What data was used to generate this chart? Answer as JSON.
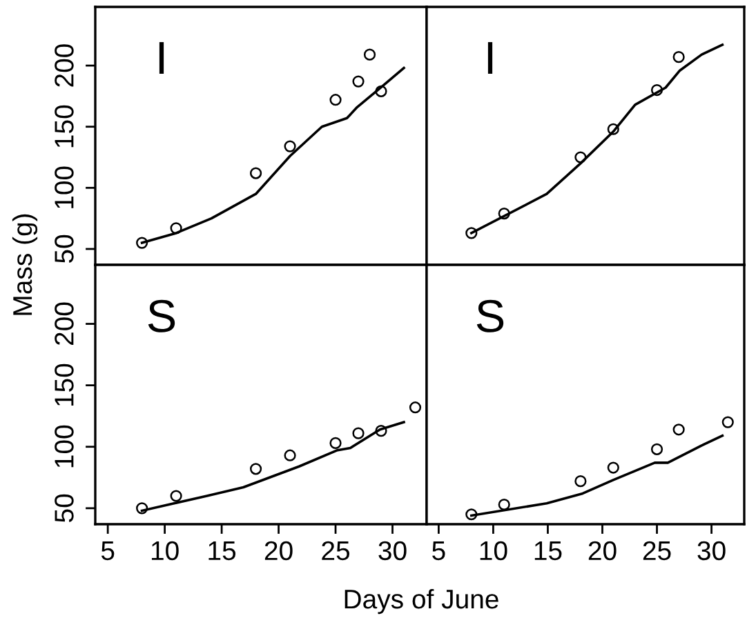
{
  "chart_data": [
    {
      "type": "scatter",
      "ylabel": "Mass (g)",
      "annotations": [
        "I"
      ],
      "xlim": [
        3.9,
        33
      ],
      "ylim": [
        37,
        248
      ],
      "yticks": [
        50,
        100,
        150,
        200
      ],
      "tick_labels": "y",
      "grid": false,
      "legend": false,
      "series": [
        {
          "marker": "circle",
          "color": "#000000",
          "x": [
            8,
            11,
            18,
            21,
            25,
            27,
            28,
            29
          ],
          "values": [
            55,
            67,
            112,
            134,
            172,
            187,
            209,
            179
          ]
        },
        {
          "type": "line",
          "line_style": "solid",
          "color": "#000000",
          "x": [
            8,
            11,
            14.1,
            18,
            21,
            23.8,
            26,
            26.9,
            29.1,
            31
          ],
          "values": [
            55,
            63,
            75,
            95,
            126,
            150,
            157,
            166,
            183,
            198
          ]
        }
      ]
    },
    {
      "type": "scatter",
      "annotations": [
        "I"
      ],
      "xlim": [
        3.9,
        33
      ],
      "ylim": [
        37,
        248
      ],
      "tick_labels": false,
      "grid": false,
      "legend": false,
      "series": [
        {
          "marker": "circle",
          "color": "#000000",
          "x": [
            8,
            11,
            18,
            21,
            25,
            27
          ],
          "values": [
            63,
            79,
            125,
            148,
            180,
            207
          ]
        },
        {
          "type": "line",
          "line_style": "solid",
          "color": "#000000",
          "x": [
            8,
            14.9,
            18,
            21,
            23,
            25.8,
            27.1,
            29.1,
            31
          ],
          "values": [
            63,
            95,
            120,
            146,
            168,
            182,
            196,
            209,
            217
          ]
        }
      ]
    },
    {
      "type": "scatter",
      "xlabel": "Days of June",
      "annotations": [
        "S"
      ],
      "xlim": [
        3.9,
        33
      ],
      "ylim": [
        37,
        248
      ],
      "xticks": [
        5,
        10,
        15,
        20,
        25,
        30
      ],
      "yticks": [
        50,
        100,
        150,
        200
      ],
      "grid": false,
      "legend": false,
      "series": [
        {
          "marker": "circle",
          "color": "#000000",
          "x": [
            8,
            11,
            18,
            21,
            25,
            27,
            29,
            32
          ],
          "values": [
            50,
            60,
            82,
            93,
            103,
            111,
            113,
            132
          ]
        },
        {
          "type": "line",
          "line_style": "solid",
          "color": "#000000",
          "x": [
            8,
            13.7,
            16.9,
            21.8,
            25.1,
            26.3,
            28.9,
            31
          ],
          "values": [
            48,
            60,
            67,
            84,
            97,
            99,
            114,
            120
          ]
        }
      ]
    },
    {
      "type": "scatter",
      "annotations": [
        "S"
      ],
      "xlim": [
        3.9,
        33
      ],
      "ylim": [
        37,
        248
      ],
      "xticks": [
        5,
        10,
        15,
        20,
        25,
        30
      ],
      "tick_labels": "x",
      "grid": false,
      "legend": false,
      "series": [
        {
          "marker": "circle",
          "color": "#000000",
          "x": [
            8,
            11,
            18,
            21,
            25,
            27,
            31.5
          ],
          "values": [
            45,
            53,
            72,
            83,
            98,
            114,
            120
          ]
        },
        {
          "type": "line",
          "line_style": "solid",
          "color": "#000000",
          "x": [
            8,
            14.9,
            18.2,
            21,
            24.8,
            26,
            29.1,
            31
          ],
          "values": [
            44,
            54,
            62,
            73,
            87,
            87,
            101,
            109
          ]
        }
      ]
    }
  ]
}
